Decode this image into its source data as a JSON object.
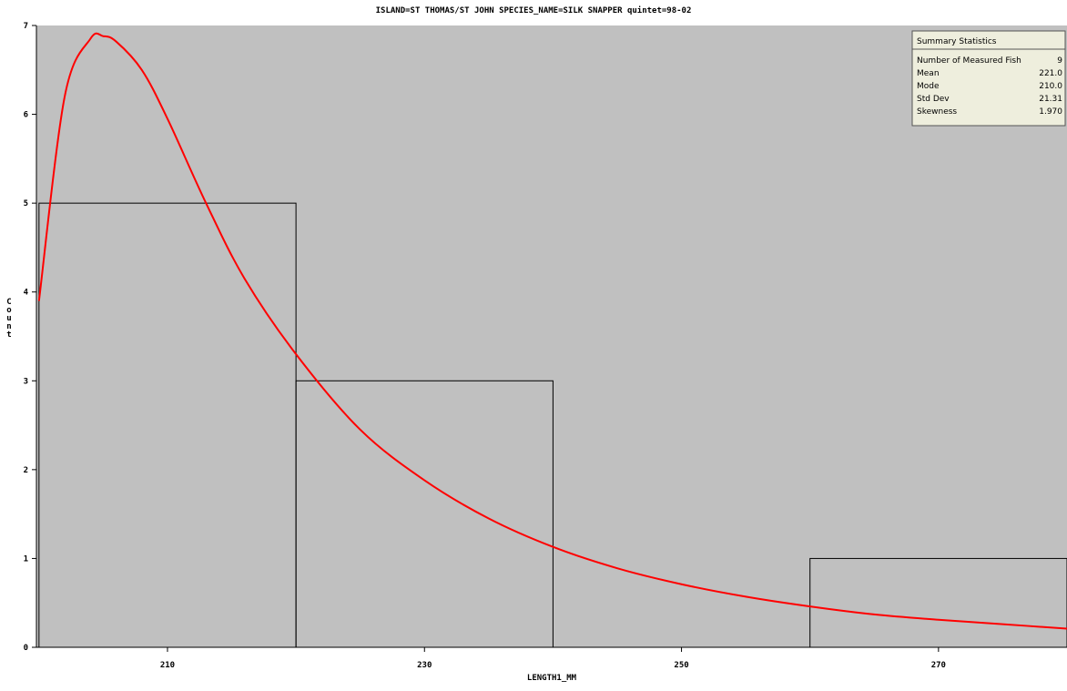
{
  "chart_data": {
    "type": "bar",
    "title": "ISLAND=ST THOMAS/ST JOHN SPECIES_NAME=SILK SNAPPER quintet=98-02",
    "xlabel": "LENGTH1_MM",
    "ylabel": "Count",
    "xlim": [
      199.8,
      280
    ],
    "ylim": [
      0,
      7
    ],
    "x_ticks": [
      210,
      230,
      250,
      270
    ],
    "y_ticks": [
      0,
      1,
      2,
      3,
      4,
      5,
      6,
      7
    ],
    "bins": [
      {
        "from": 200,
        "to": 220,
        "count": 5
      },
      {
        "from": 220,
        "to": 240,
        "count": 3
      },
      {
        "from": 240,
        "to": 260,
        "count": 0
      },
      {
        "from": 260,
        "to": 280,
        "count": 1
      }
    ],
    "curve": {
      "x": [
        200,
        202,
        204,
        205,
        206,
        208,
        210,
        213,
        216,
        220,
        225,
        230,
        235,
        240,
        245,
        250,
        255,
        260,
        265,
        270,
        275,
        280
      ],
      "y": [
        3.9,
        6.2,
        6.85,
        6.88,
        6.82,
        6.5,
        5.95,
        5.0,
        4.15,
        3.3,
        2.45,
        1.88,
        1.45,
        1.13,
        0.89,
        0.71,
        0.57,
        0.46,
        0.37,
        0.31,
        0.26,
        0.21
      ]
    },
    "colors": {
      "plot_bg": "#c0c0c0",
      "curve": "#ff0000",
      "bar_outline": "#000000",
      "inset_bg": "#eeeedd"
    },
    "grid": false,
    "legend_position": "top-right",
    "summary_statistics": {
      "header": "Summary Statistics",
      "rows": [
        {
          "label": "Number of Measured Fish",
          "value": "9"
        },
        {
          "label": "Mean",
          "value": "221.0"
        },
        {
          "label": "Mode",
          "value": "210.0"
        },
        {
          "label": "Std Dev",
          "value": "21.31"
        },
        {
          "label": "Skewness",
          "value": "1.970"
        }
      ]
    }
  }
}
